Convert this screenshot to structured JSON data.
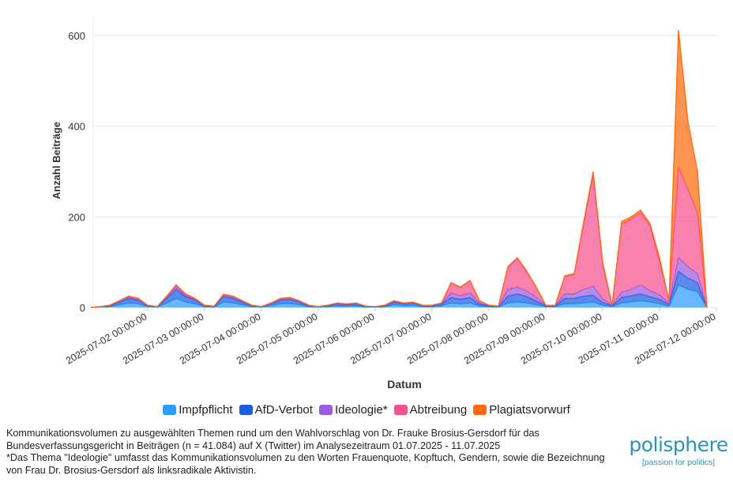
{
  "chart_data": {
    "type": "area",
    "stacked": true,
    "xlabel": "Datum",
    "ylabel": "Anzahl Beiträge",
    "ylim": [
      0,
      600
    ],
    "yticks": [
      0,
      200,
      400,
      600
    ],
    "grid": true,
    "legend_position": "bottom",
    "x_start": "2025-07-01 00:00:00",
    "x_step_hours": 4,
    "xtick_labels": [
      "2025-07-02 00:00:00",
      "2025-07-03 00:00:00",
      "2025-07-04 00:00:00",
      "2025-07-05 00:00:00",
      "2025-07-06 00:00:00",
      "2025-07-07 00:00:00",
      "2025-07-08 00:00:00",
      "2025-07-09 00:00:00",
      "2025-07-10 00:00:00",
      "2025-07-11 00:00:00",
      "2025-07-12 00:00:00"
    ],
    "series": [
      {
        "name": "Impfpflicht",
        "color": "#2f9bff",
        "values": [
          0,
          1,
          2,
          6,
          10,
          8,
          2,
          1,
          10,
          20,
          12,
          8,
          2,
          1,
          12,
          10,
          6,
          2,
          1,
          4,
          8,
          9,
          6,
          2,
          1,
          2,
          4,
          3,
          4,
          1,
          1,
          2,
          6,
          4,
          5,
          2,
          2,
          4,
          10,
          8,
          10,
          3,
          2,
          1,
          10,
          12,
          10,
          6,
          2,
          2,
          8,
          8,
          10,
          12,
          5,
          2,
          10,
          12,
          15,
          12,
          8,
          3,
          50,
          40,
          35,
          0
        ]
      },
      {
        "name": "AfD-Verbot",
        "color": "#1a5ee0",
        "values": [
          0,
          1,
          2,
          6,
          10,
          8,
          2,
          1,
          10,
          20,
          12,
          8,
          2,
          1,
          12,
          10,
          6,
          2,
          1,
          4,
          8,
          9,
          6,
          2,
          1,
          2,
          4,
          3,
          4,
          1,
          1,
          2,
          6,
          4,
          5,
          2,
          2,
          4,
          12,
          10,
          12,
          4,
          2,
          1,
          15,
          18,
          14,
          8,
          2,
          2,
          12,
          12,
          15,
          15,
          6,
          2,
          12,
          14,
          15,
          12,
          10,
          4,
          30,
          25,
          20,
          0
        ]
      },
      {
        "name": "Ideologie*",
        "color": "#9b5ce0",
        "values": [
          0,
          0,
          1,
          2,
          3,
          2,
          1,
          0,
          3,
          5,
          3,
          2,
          1,
          1,
          3,
          3,
          2,
          1,
          0,
          1,
          2,
          2,
          2,
          1,
          0,
          1,
          1,
          1,
          1,
          1,
          0,
          1,
          2,
          1,
          1,
          1,
          1,
          1,
          10,
          8,
          10,
          3,
          1,
          1,
          15,
          15,
          12,
          8,
          1,
          1,
          10,
          10,
          15,
          20,
          8,
          1,
          12,
          14,
          20,
          13,
          10,
          3,
          30,
          25,
          20,
          0
        ]
      },
      {
        "name": "Abtreibung",
        "color": "#f5508f",
        "values": [
          0,
          0,
          0,
          1,
          2,
          2,
          0,
          0,
          2,
          5,
          3,
          2,
          0,
          0,
          2,
          2,
          1,
          0,
          0,
          1,
          2,
          2,
          1,
          0,
          0,
          0,
          1,
          1,
          1,
          0,
          0,
          0,
          1,
          1,
          1,
          0,
          0,
          1,
          22,
          18,
          27,
          5,
          0,
          0,
          48,
          63,
          42,
          22,
          0,
          0,
          38,
          43,
          145,
          245,
          75,
          0,
          150,
          155,
          160,
          143,
          72,
          5,
          200,
          170,
          135,
          0
        ]
      },
      {
        "name": "Plagiatsvorwurf",
        "color": "#ff6a0d",
        "values": [
          0,
          0,
          0,
          0,
          0,
          0,
          0,
          0,
          0,
          0,
          0,
          0,
          0,
          0,
          0,
          0,
          0,
          0,
          0,
          0,
          0,
          0,
          0,
          0,
          0,
          0,
          0,
          0,
          0,
          0,
          0,
          0,
          0,
          0,
          0,
          0,
          0,
          0,
          1,
          1,
          1,
          0,
          0,
          0,
          2,
          2,
          2,
          1,
          0,
          0,
          2,
          2,
          5,
          8,
          6,
          0,
          6,
          5,
          5,
          5,
          10,
          0,
          302,
          150,
          90,
          0
        ]
      }
    ]
  },
  "caption": {
    "line1": "Kommunikationsvolumen zu ausgewählten Themen rund um den Wahlvorschlag von Dr. Frauke Brosius-Gersdorf für das",
    "line2": "Bundesverfassungsgericht in Beiträgen (n = 41.084) auf X (Twitter) im Analysezeitraum 01.07.2025 - 11.07.2025",
    "line3": "*Das Thema \"Ideologie\" umfasst das Kommunikationsvolumen zu den Worten Frauenquote, Kopftuch, Gendern, sowie die Bezeichnung",
    "line4": "von Frau Dr. Brosius-Gersdorf als linksradikale Aktivistin."
  },
  "logo": {
    "name": "polisphere",
    "tagline": "[passion for politics]"
  }
}
